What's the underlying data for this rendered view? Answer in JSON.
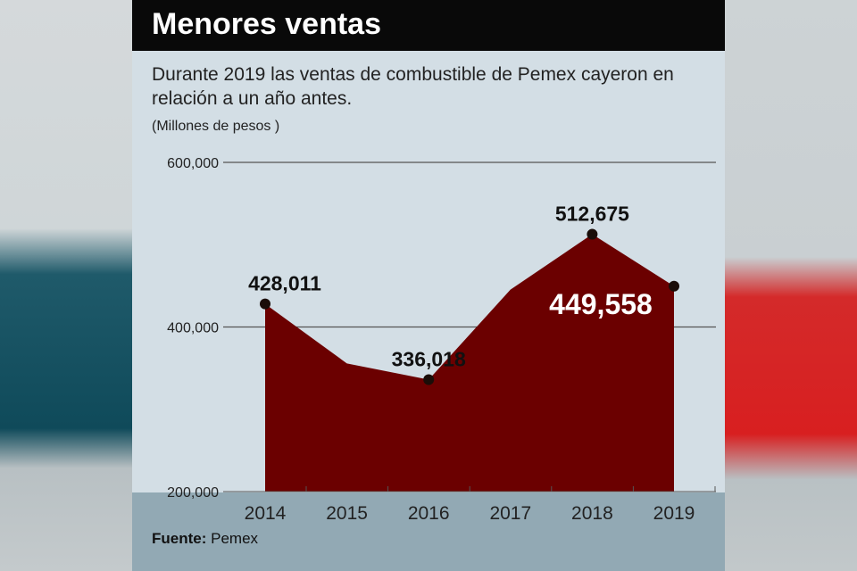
{
  "title": "Menores ventas",
  "subtitle": "Durante 2019 las ventas de combustible de Pemex cayeron en relación a un año antes.",
  "source_label": "Fuente:",
  "source": "Pemex",
  "chart_data": {
    "type": "area",
    "title": "Menores ventas",
    "ylabel": "(Millones de pesos )",
    "xlabel": "",
    "categories": [
      "2014",
      "2015",
      "2016",
      "2017",
      "2018",
      "2019"
    ],
    "values": [
      428011,
      355700,
      336018,
      445400,
      512675,
      449558
    ],
    "labels": [
      "428,011",
      "",
      "336,018",
      "",
      "512,675",
      "449,558"
    ],
    "yticks": [
      {
        "v": 200000,
        "t": "200,000"
      },
      {
        "v": 400000,
        "t": "400,000"
      },
      {
        "v": 600000,
        "t": "600,000"
      }
    ],
    "ylim": [
      200000,
      600000
    ],
    "grid": true,
    "color": "#6b0000"
  }
}
